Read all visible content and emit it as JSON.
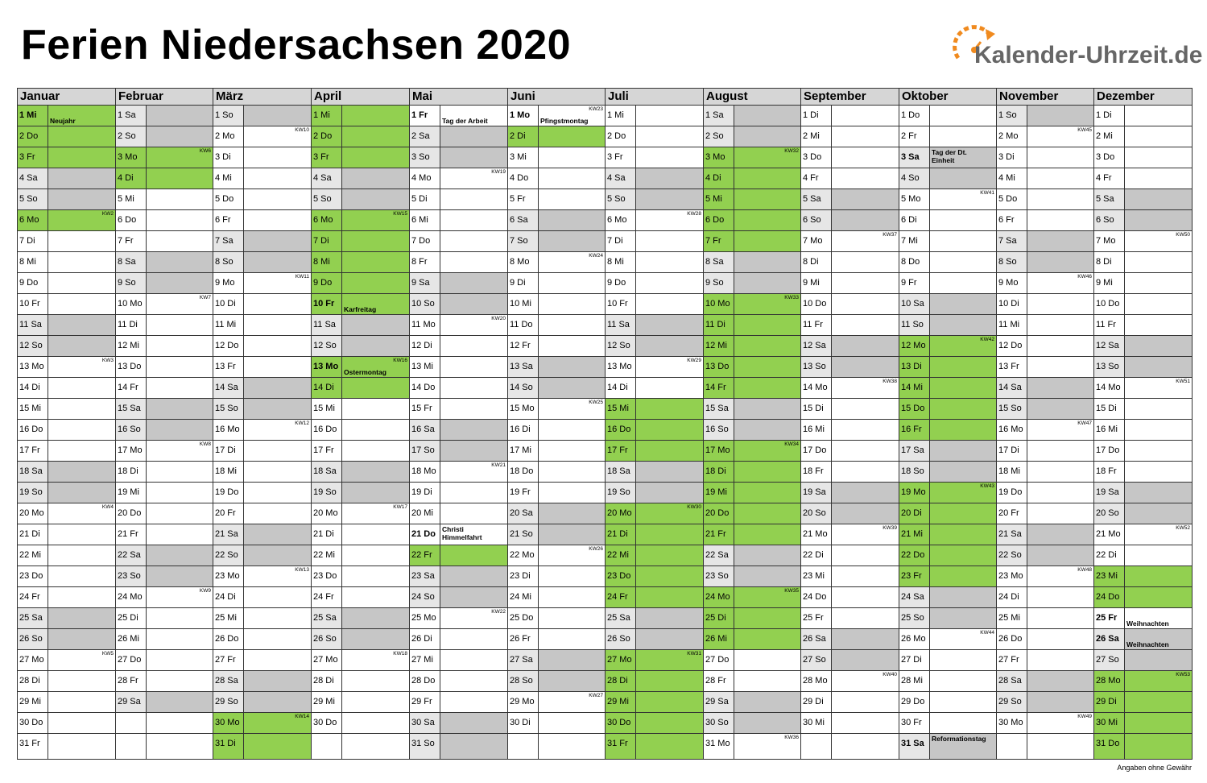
{
  "title": "Ferien Niedersachsen 2020",
  "logo_text": "Kalender-Uhrzeit.de",
  "footnote": "Angaben ohne Gewähr",
  "colors": {
    "holiday_green": "#92d050",
    "weekend_date": "#e6e6e6",
    "weekend_note": "#c6c6c6",
    "header": "#d6d6d6",
    "logo_orange": "#f08a1e"
  },
  "months": [
    {
      "name": "Januar",
      "start": 2,
      "days": 31,
      "green": [
        1,
        2,
        3,
        6
      ],
      "bold": [
        1
      ],
      "notes": {
        "1": "Neujahr"
      },
      "kw": {
        "6": "KW2",
        "13": "KW3",
        "20": "KW4",
        "27": "KW5"
      }
    },
    {
      "name": "Februar",
      "start": 5,
      "days": 29,
      "green": [
        3,
        4
      ],
      "bold": [],
      "notes": {},
      "kw": {
        "3": "KW6",
        "10": "KW7",
        "17": "KW8",
        "24": "KW9"
      }
    },
    {
      "name": "März",
      "start": 6,
      "days": 31,
      "green": [
        30,
        31
      ],
      "bold": [],
      "notes": {},
      "kw": {
        "2": "KW10",
        "9": "KW11",
        "16": "KW12",
        "23": "KW13",
        "30": "KW14"
      }
    },
    {
      "name": "April",
      "start": 2,
      "days": 30,
      "green": [
        1,
        2,
        3,
        6,
        7,
        8,
        9,
        10,
        13,
        14
      ],
      "bold": [
        10,
        13
      ],
      "notes": {
        "10": "Karfreitag",
        "13": "Ostermontag"
      },
      "kw": {
        "6": "KW15",
        "13": "KW16",
        "20": "KW17",
        "27": "KW18"
      }
    },
    {
      "name": "Mai",
      "start": 4,
      "days": 31,
      "green": [
        22
      ],
      "bold": [
        1,
        21
      ],
      "notes": {
        "1": "Tag der Arbeit",
        "21": "Christi Himmelfahrt"
      },
      "kw": {
        "4": "KW19",
        "11": "KW20",
        "18": "KW21",
        "25": "KW22"
      }
    },
    {
      "name": "Juni",
      "start": 0,
      "days": 30,
      "green": [
        2
      ],
      "bold": [
        1
      ],
      "notes": {
        "1": "Pfingstmontag"
      },
      "kw": {
        "1": "KW23",
        "8": "KW24",
        "15": "KW25",
        "22": "KW26",
        "29": "KW27"
      }
    },
    {
      "name": "Juli",
      "start": 2,
      "days": 31,
      "green": [
        15,
        16,
        17,
        20,
        21,
        22,
        23,
        24,
        27,
        28,
        29,
        30,
        31
      ],
      "bold": [],
      "notes": {},
      "kw": {
        "6": "KW28",
        "13": "KW29",
        "20": "KW30",
        "27": "KW31"
      }
    },
    {
      "name": "August",
      "start": 5,
      "days": 31,
      "green": [
        3,
        4,
        5,
        6,
        7,
        10,
        11,
        12,
        13,
        14,
        17,
        18,
        19,
        20,
        21,
        24,
        25,
        26
      ],
      "bold": [],
      "notes": {},
      "kw": {
        "3": "KW32",
        "10": "KW33",
        "17": "KW34",
        "24": "KW35",
        "31": "KW36"
      }
    },
    {
      "name": "September",
      "start": 1,
      "days": 30,
      "green": [],
      "bold": [],
      "notes": {},
      "kw": {
        "7": "KW37",
        "14": "KW38",
        "21": "KW39",
        "28": "KW40"
      }
    },
    {
      "name": "Oktober",
      "start": 3,
      "days": 31,
      "green": [
        12,
        13,
        14,
        15,
        16,
        19,
        20,
        21,
        22,
        23
      ],
      "bold": [
        3,
        31
      ],
      "notes": {
        "3": "Tag der Dt. Einheit",
        "31": "Reformationstag"
      },
      "kw": {
        "5": "KW41",
        "12": "KW42",
        "19": "KW43",
        "26": "KW44"
      }
    },
    {
      "name": "November",
      "start": 6,
      "days": 30,
      "green": [],
      "bold": [],
      "notes": {},
      "kw": {
        "2": "KW45",
        "9": "KW46",
        "16": "KW47",
        "23": "KW48",
        "30": "KW49"
      }
    },
    {
      "name": "Dezember",
      "start": 1,
      "days": 31,
      "green": [
        23,
        24,
        28,
        29,
        30,
        31
      ],
      "bold": [
        25,
        26
      ],
      "notes": {
        "25": "Weihnachten",
        "26": "Weihnachten"
      },
      "kw": {
        "7": "KW50",
        "14": "KW51",
        "21": "KW52",
        "28": "KW53"
      }
    }
  ],
  "weekdays": [
    "Mo",
    "Di",
    "Mi",
    "Do",
    "Fr",
    "Sa",
    "So"
  ]
}
